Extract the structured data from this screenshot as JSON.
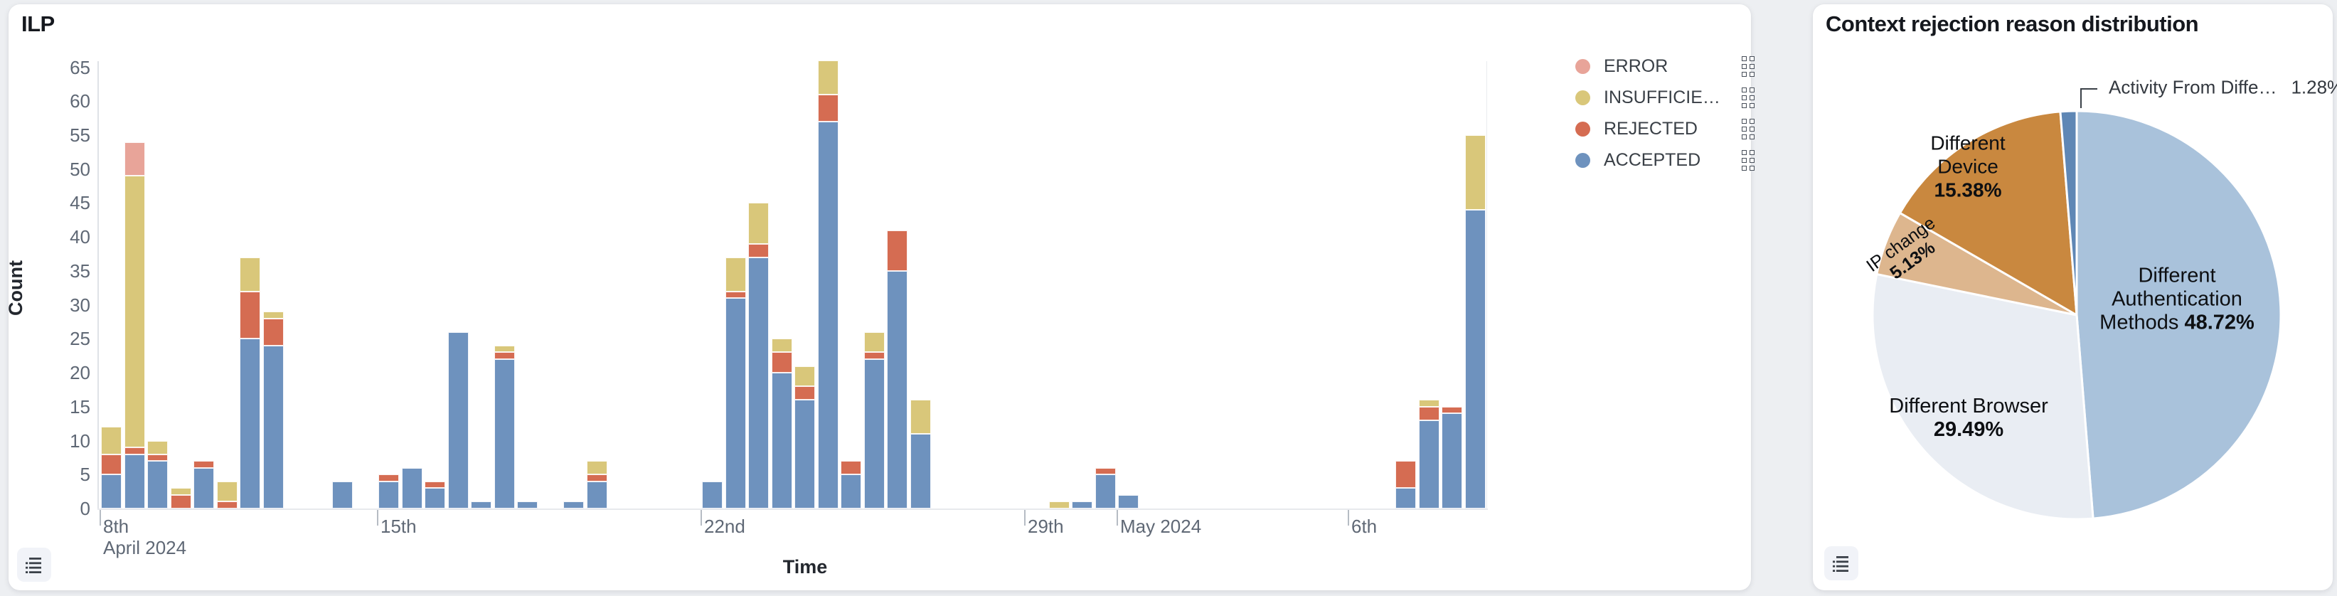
{
  "page": {
    "background": "#edeff2"
  },
  "left_card": {
    "title": "ILP",
    "x_axis_label": "Time",
    "y_axis_label": "Count",
    "legend": [
      {
        "label": "ERROR",
        "color": "#e8a499"
      },
      {
        "label": "INSUFFICIE…",
        "color": "#d9c77a"
      },
      {
        "label": "REJECTED",
        "color": "#d56c52"
      },
      {
        "label": "ACCEPTED",
        "color": "#6e92be"
      }
    ]
  },
  "right_card": {
    "title": "Context rejection reason distribution"
  },
  "chart_data": [
    {
      "type": "bar",
      "stacked": true,
      "title": "ILP",
      "xlabel": "Time",
      "ylabel": "Count",
      "ylim": [
        0,
        67
      ],
      "grid": false,
      "legend_position": "right",
      "y_ticks": [
        0,
        5,
        10,
        15,
        20,
        25,
        30,
        35,
        40,
        45,
        50,
        55,
        60,
        65
      ],
      "x_unit": "12-hour bins",
      "x_ticks": [
        {
          "slot": 0,
          "label": "8th",
          "sublabel": "April 2024"
        },
        {
          "slot": 12,
          "label": "15th"
        },
        {
          "slot": 26,
          "label": "22nd"
        },
        {
          "slot": 40,
          "label": "29th"
        },
        {
          "slot": 44,
          "label": "May 2024"
        },
        {
          "slot": 54,
          "label": "6th"
        }
      ],
      "series_order": [
        "ACCEPTED",
        "REJECTED",
        "INSUFFICIENT",
        "ERROR"
      ],
      "series_colors": {
        "ACCEPTED": "#6e92be",
        "REJECTED": "#d56c52",
        "INSUFFICIENT": "#d9c77a",
        "ERROR": "#e8a499"
      },
      "bars": [
        {
          "slot": 0,
          "time": "Apr 9 AM",
          "ACCEPTED": 5,
          "REJECTED": 3,
          "INSUFFICIENT": 4,
          "ERROR": 0
        },
        {
          "slot": 1,
          "time": "Apr 9 PM",
          "ACCEPTED": 8,
          "REJECTED": 1,
          "INSUFFICIENT": 40,
          "ERROR": 5
        },
        {
          "slot": 2,
          "time": "Apr 10 AM",
          "ACCEPTED": 7,
          "REJECTED": 1,
          "INSUFFICIENT": 2,
          "ERROR": 0
        },
        {
          "slot": 3,
          "time": "Apr 10 PM",
          "ACCEPTED": 0,
          "REJECTED": 2,
          "INSUFFICIENT": 1,
          "ERROR": 0
        },
        {
          "slot": 4,
          "time": "Apr 11 AM",
          "ACCEPTED": 6,
          "REJECTED": 1,
          "INSUFFICIENT": 0,
          "ERROR": 0
        },
        {
          "slot": 5,
          "time": "Apr 11 PM",
          "ACCEPTED": 0,
          "REJECTED": 1,
          "INSUFFICIENT": 3,
          "ERROR": 0
        },
        {
          "slot": 6,
          "time": "Apr 12 AM",
          "ACCEPTED": 25,
          "REJECTED": 7,
          "INSUFFICIENT": 5,
          "ERROR": 0
        },
        {
          "slot": 7,
          "time": "Apr 12 PM",
          "ACCEPTED": 24,
          "REJECTED": 4,
          "INSUFFICIENT": 1,
          "ERROR": 0
        },
        {
          "slot": 10,
          "time": "Apr 14 AM",
          "ACCEPTED": 4,
          "REJECTED": 0,
          "INSUFFICIENT": 0,
          "ERROR": 0
        },
        {
          "slot": 12,
          "time": "Apr 15 AM",
          "ACCEPTED": 4,
          "REJECTED": 1,
          "INSUFFICIENT": 0,
          "ERROR": 0
        },
        {
          "slot": 13,
          "time": "Apr 15 PM",
          "ACCEPTED": 6,
          "REJECTED": 0,
          "INSUFFICIENT": 0,
          "ERROR": 0
        },
        {
          "slot": 14,
          "time": "Apr 16 AM",
          "ACCEPTED": 3,
          "REJECTED": 1,
          "INSUFFICIENT": 0,
          "ERROR": 0
        },
        {
          "slot": 15,
          "time": "Apr 16 PM",
          "ACCEPTED": 26,
          "REJECTED": 0,
          "INSUFFICIENT": 0,
          "ERROR": 0
        },
        {
          "slot": 16,
          "time": "Apr 17 AM",
          "ACCEPTED": 1,
          "REJECTED": 0,
          "INSUFFICIENT": 0,
          "ERROR": 0
        },
        {
          "slot": 17,
          "time": "Apr 17 PM",
          "ACCEPTED": 22,
          "REJECTED": 1,
          "INSUFFICIENT": 1,
          "ERROR": 0
        },
        {
          "slot": 18,
          "time": "Apr 18 AM",
          "ACCEPTED": 1,
          "REJECTED": 0,
          "INSUFFICIENT": 0,
          "ERROR": 0
        },
        {
          "slot": 20,
          "time": "Apr 19 AM",
          "ACCEPTED": 1,
          "REJECTED": 0,
          "INSUFFICIENT": 0,
          "ERROR": 0
        },
        {
          "slot": 21,
          "time": "Apr 19 PM",
          "ACCEPTED": 4,
          "REJECTED": 1,
          "INSUFFICIENT": 2,
          "ERROR": 0
        },
        {
          "slot": 26,
          "time": "Apr 22 AM",
          "ACCEPTED": 4,
          "REJECTED": 0,
          "INSUFFICIENT": 0,
          "ERROR": 0
        },
        {
          "slot": 27,
          "time": "Apr 22 PM",
          "ACCEPTED": 31,
          "REJECTED": 1,
          "INSUFFICIENT": 5,
          "ERROR": 0
        },
        {
          "slot": 28,
          "time": "Apr 23 AM",
          "ACCEPTED": 37,
          "REJECTED": 2,
          "INSUFFICIENT": 6,
          "ERROR": 0
        },
        {
          "slot": 29,
          "time": "Apr 23 PM",
          "ACCEPTED": 20,
          "REJECTED": 3,
          "INSUFFICIENT": 2,
          "ERROR": 0
        },
        {
          "slot": 30,
          "time": "Apr 24 AM",
          "ACCEPTED": 16,
          "REJECTED": 2,
          "INSUFFICIENT": 3,
          "ERROR": 0
        },
        {
          "slot": 31,
          "time": "Apr 24 PM",
          "ACCEPTED": 57,
          "REJECTED": 4,
          "INSUFFICIENT": 5,
          "ERROR": 0
        },
        {
          "slot": 32,
          "time": "Apr 25 AM",
          "ACCEPTED": 5,
          "REJECTED": 2,
          "INSUFFICIENT": 0,
          "ERROR": 0
        },
        {
          "slot": 33,
          "time": "Apr 25 PM",
          "ACCEPTED": 22,
          "REJECTED": 1,
          "INSUFFICIENT": 3,
          "ERROR": 0
        },
        {
          "slot": 34,
          "time": "Apr 26 AM",
          "ACCEPTED": 35,
          "REJECTED": 6,
          "INSUFFICIENT": 0,
          "ERROR": 0
        },
        {
          "slot": 35,
          "time": "Apr 26 PM",
          "ACCEPTED": 11,
          "REJECTED": 0,
          "INSUFFICIENT": 5,
          "ERROR": 0
        },
        {
          "slot": 41,
          "time": "Apr 29 PM",
          "ACCEPTED": 0,
          "REJECTED": 0,
          "INSUFFICIENT": 1,
          "ERROR": 0
        },
        {
          "slot": 42,
          "time": "Apr 30 AM",
          "ACCEPTED": 1,
          "REJECTED": 0,
          "INSUFFICIENT": 0,
          "ERROR": 0
        },
        {
          "slot": 43,
          "time": "Apr 30 PM",
          "ACCEPTED": 5,
          "REJECTED": 1,
          "INSUFFICIENT": 0,
          "ERROR": 0
        },
        {
          "slot": 44,
          "time": "May 1 AM",
          "ACCEPTED": 2,
          "REJECTED": 0,
          "INSUFFICIENT": 0,
          "ERROR": 0
        },
        {
          "slot": 56,
          "time": "May 7 AM",
          "ACCEPTED": 3,
          "REJECTED": 4,
          "INSUFFICIENT": 0,
          "ERROR": 0
        },
        {
          "slot": 57,
          "time": "May 7 PM",
          "ACCEPTED": 13,
          "REJECTED": 2,
          "INSUFFICIENT": 1,
          "ERROR": 0
        },
        {
          "slot": 58,
          "time": "May 8 AM",
          "ACCEPTED": 14,
          "REJECTED": 1,
          "INSUFFICIENT": 0,
          "ERROR": 0
        },
        {
          "slot": 59,
          "time": "May 8 PM",
          "ACCEPTED": 44,
          "REJECTED": 0,
          "INSUFFICIENT": 11,
          "ERROR": 0
        }
      ]
    },
    {
      "type": "pie",
      "title": "Context rejection reason distribution",
      "start_angle": "top",
      "direction": "clockwise",
      "slices": [
        {
          "label": "Different Authentication Methods",
          "pct": 48.72,
          "color": "#a9c2db",
          "label_lines": [
            "Different",
            "Authentication"
          ],
          "pct_prefix": "Methods ",
          "pct_text": "48.72%"
        },
        {
          "label": "Different Browser",
          "pct": 29.49,
          "color": "#e9edf3",
          "label_lines": [
            "Different Browser"
          ],
          "pct_text": "29.49%"
        },
        {
          "label": "IP change",
          "pct": 5.13,
          "color": "#ddb68e",
          "label_lines": [
            "IP change"
          ],
          "pct_text": "5.13%"
        },
        {
          "label": "Different Device",
          "pct": 15.38,
          "color": "#c9883f",
          "label_lines": [
            "Different",
            "Device"
          ],
          "pct_text": "15.38%"
        },
        {
          "label": "Activity From Diffe…",
          "pct": 1.28,
          "color": "#5f87b5",
          "display": "Activity From Diffe…",
          "pct_text": "1.28%",
          "callout": true
        }
      ]
    }
  ]
}
